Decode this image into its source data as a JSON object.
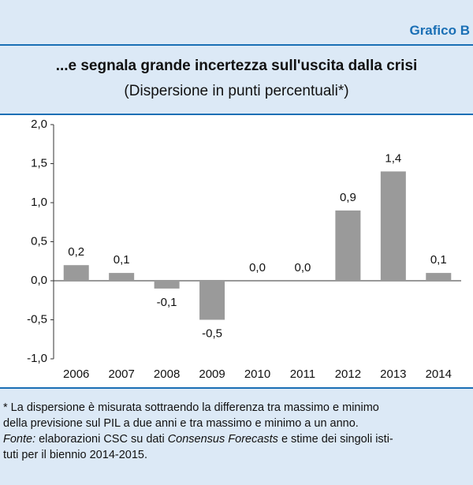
{
  "header": {
    "label": "Grafico B"
  },
  "chart_data": {
    "type": "bar",
    "title": "...e segnala grande incertezza sull'uscita dalla crisi",
    "subtitle": "(Dispersione in punti percentuali*)",
    "categories": [
      "2006",
      "2007",
      "2008",
      "2009",
      "2010",
      "2011",
      "2012",
      "2013",
      "2014"
    ],
    "values": [
      0.2,
      0.1,
      -0.1,
      -0.5,
      0.0,
      0.0,
      0.9,
      1.4,
      0.1
    ],
    "value_labels": [
      "0,2",
      "0,1",
      "-0,1",
      "-0,5",
      "0,0",
      "0,0",
      "0,9",
      "1,4",
      "0,1"
    ],
    "color": "#9a9a9a",
    "ylim": [
      -1.0,
      2.0
    ],
    "yticks": [
      {
        "value": -1.0,
        "label": "-1,0"
      },
      {
        "value": -0.5,
        "label": "-0,5"
      },
      {
        "value": 0.0,
        "label": "0,0"
      },
      {
        "value": 0.5,
        "label": "0,5"
      },
      {
        "value": 1.0,
        "label": "1,0"
      },
      {
        "value": 1.5,
        "label": "1,5"
      },
      {
        "value": 2.0,
        "label": "2,0"
      }
    ]
  },
  "footnote": {
    "lines": [
      "* La dispersione è misurata sottraendo la differenza tra massimo e minimo",
      "della previsione sul PIL a due anni e tra massimo e minimo a un anno."
    ],
    "source": [
      "Fonte:",
      "elaborazioni CSC su dati",
      "Consensus Forecasts",
      "e stime dei singoli isti-",
      "tuti per il biennio 2014-2015."
    ]
  }
}
